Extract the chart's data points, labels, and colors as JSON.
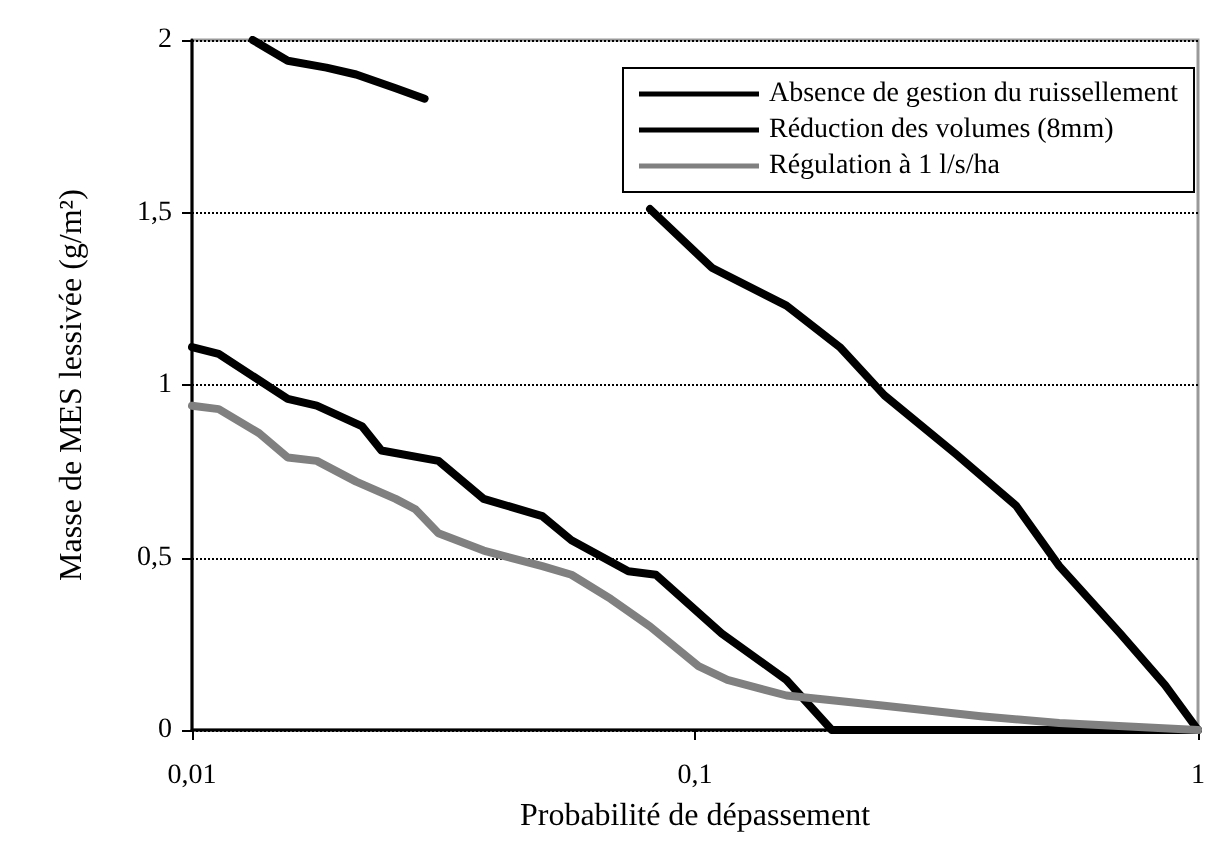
{
  "chart_data": {
    "type": "line",
    "xlabel": "Probabilité de dépassement",
    "ylabel": "Masse de MES lessivée (g/m²)",
    "log": "x",
    "xlim": [
      0.01,
      1
    ],
    "ylim": [
      0,
      2
    ],
    "xticks": [
      {
        "value": 0.01,
        "label": "0,01"
      },
      {
        "value": 0.1,
        "label": "0,1"
      },
      {
        "value": 1,
        "label": "1"
      }
    ],
    "yticks": [
      0,
      {
        "value": 0.5,
        "label": "0,5"
      },
      1,
      {
        "value": 1.5,
        "label": "1,5"
      },
      2
    ],
    "grid": "y",
    "legend": "top right",
    "marker": "none",
    "line_style": "solid",
    "series": [
      {
        "name": "Absence de gestion du ruissellement",
        "color": "#000000",
        "x": [
          0.0132,
          0.0155,
          0.0185,
          0.0212,
          0.0254,
          0.029,
          0.05,
          0.0814,
          0.108,
          0.152,
          0.194,
          0.238,
          0.33,
          0.435,
          0.53,
          0.7,
          0.86,
          1
        ],
        "values": [
          2.0,
          1.94,
          1.92,
          1.9,
          1.86,
          1.83,
          null,
          1.51,
          1.34,
          1.23,
          1.11,
          0.97,
          0.8,
          0.65,
          0.475,
          0.28,
          0.13,
          0
        ]
      },
      {
        "name": "Réduction des volumes (8mm)",
        "color": "#000000",
        "x": [
          0.01,
          0.0113,
          0.0155,
          0.0177,
          0.0218,
          0.0238,
          0.0309,
          0.038,
          0.0497,
          0.0568,
          0.0737,
          0.0836,
          0.113,
          0.152,
          0.187,
          0.3,
          1
        ],
        "values": [
          1.11,
          1.09,
          0.96,
          0.94,
          0.88,
          0.81,
          0.78,
          0.67,
          0.62,
          0.55,
          0.46,
          0.45,
          0.28,
          0.145,
          0,
          0,
          0
        ]
      },
      {
        "name": "Régulation à 1 l/s/ha",
        "color": "#808080",
        "x": [
          0.01,
          0.0113,
          0.0136,
          0.0155,
          0.0177,
          0.0212,
          0.0254,
          0.0278,
          0.0309,
          0.038,
          0.0497,
          0.0568,
          0.068,
          0.0814,
          0.1016,
          0.116,
          0.152,
          0.238,
          0.37,
          0.53,
          1
        ],
        "values": [
          0.94,
          0.93,
          0.86,
          0.79,
          0.78,
          0.72,
          0.67,
          0.64,
          0.57,
          0.52,
          0.475,
          0.45,
          0.38,
          0.3,
          0.185,
          0.145,
          0.1,
          0.07,
          0.04,
          0.02,
          0
        ]
      }
    ]
  }
}
